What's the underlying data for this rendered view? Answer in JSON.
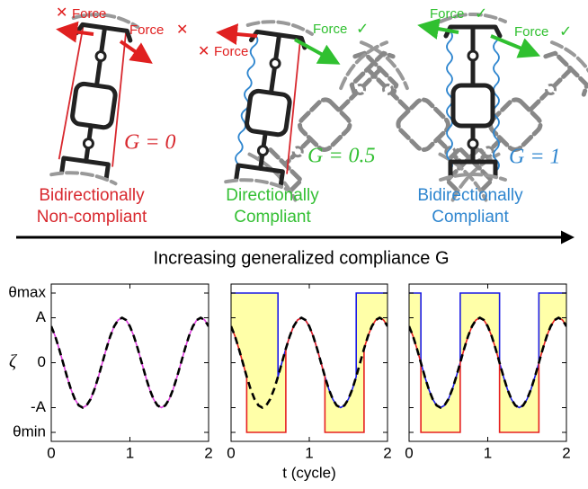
{
  "illustration": {
    "panels": [
      {
        "force_labels": [
          "Force",
          "Force"
        ],
        "g_label": "G = 0",
        "caption": [
          "Bidirectionally",
          "Non-compliant"
        ],
        "color": "#d8282e"
      },
      {
        "force_labels": [
          "Force",
          "Force"
        ],
        "g_label": "G = 0.5",
        "caption": [
          "Directionally",
          "Compliant"
        ],
        "color": "#35c035"
      },
      {
        "force_labels": [
          "Force",
          "Force"
        ],
        "g_label": "G = 1",
        "caption": [
          "Bidirectionally",
          "Compliant"
        ],
        "color": "#2f86cf"
      }
    ],
    "arrow_caption": "Increasing generalized compliance G"
  },
  "chart_data": [
    {
      "type": "line",
      "ylabel": "ζ",
      "x": [
        0,
        0.05,
        0.1,
        0.15,
        0.2,
        0.25,
        0.3,
        0.35,
        0.4,
        0.45,
        0.5,
        0.55,
        0.6,
        0.65,
        0.7,
        0.75,
        0.8,
        0.85,
        0.9,
        0.95,
        1,
        1.05,
        1.1,
        1.15,
        1.2,
        1.25,
        1.3,
        1.35,
        1.4,
        1.45,
        1.5,
        1.55,
        1.6,
        1.65,
        1.7,
        1.75,
        1.8,
        1.85,
        1.9,
        1.95,
        2
      ],
      "series": [
        {
          "color": "#e040e0",
          "style": "solid",
          "values": [
            0.81,
            0.59,
            0.31,
            0,
            -0.31,
            -0.59,
            -0.81,
            -0.95,
            -1,
            -0.95,
            -0.81,
            -0.59,
            -0.31,
            0,
            0.31,
            0.59,
            0.81,
            0.95,
            1,
            0.95,
            0.81,
            0.59,
            0.31,
            0,
            -0.31,
            -0.59,
            -0.81,
            -0.95,
            -1,
            -0.95,
            -0.81,
            -0.59,
            -0.31,
            0,
            0.31,
            0.59,
            0.81,
            0.95,
            1,
            0.95,
            0.81
          ]
        },
        {
          "color": "#000000",
          "style": "dashed",
          "values": [
            0.81,
            0.59,
            0.31,
            0,
            -0.31,
            -0.59,
            -0.81,
            -0.95,
            -1,
            -0.95,
            -0.81,
            -0.59,
            -0.31,
            0,
            0.31,
            0.59,
            0.81,
            0.95,
            1,
            0.95,
            0.81,
            0.59,
            0.31,
            0,
            -0.31,
            -0.59,
            -0.81,
            -0.95,
            -1,
            -0.95,
            -0.81,
            -0.59,
            -0.31,
            0,
            0.31,
            0.59,
            0.81,
            0.95,
            1,
            0.95,
            0.81
          ]
        }
      ],
      "xlim": [
        0,
        2
      ],
      "xticks": [
        0,
        1,
        2
      ],
      "ylim": [
        -1.75,
        1.75
      ],
      "show_ytick_labels": true,
      "yticks": [
        {
          "value": 1.55,
          "label": "θmax"
        },
        {
          "value": 1,
          "label": "A"
        },
        0,
        {
          "value": -1,
          "label": "-A"
        },
        {
          "value": -1.55,
          "label": "θmin"
        }
      ]
    },
    {
      "type": "line",
      "xlabel": "t (cycle)",
      "fill": "#ffffa8",
      "x": [
        0,
        0.05,
        0.1,
        0.15,
        0.2,
        0.25,
        0.3,
        0.35,
        0.4,
        0.45,
        0.5,
        0.55,
        0.6,
        0.65,
        0.7,
        0.75,
        0.8,
        0.85,
        0.9,
        0.95,
        1,
        1.05,
        1.1,
        1.15,
        1.2,
        1.25,
        1.3,
        1.35,
        1.4,
        1.45,
        1.5,
        1.55,
        1.6,
        1.65,
        1.7,
        1.75,
        1.8,
        1.85,
        1.9,
        1.95,
        2
      ],
      "series": [
        {
          "color": "#1a1ae6",
          "style": "solid",
          "x": [
            0,
            0.6,
            0.6,
            0.65,
            0.7,
            0.75,
            0.8,
            0.85,
            0.9,
            0.95,
            1,
            1.05,
            1.1,
            1.15,
            1.2,
            1.25,
            1.3,
            1.35,
            1.4,
            1.45,
            1.5,
            1.55,
            1.6,
            1.6,
            2
          ],
          "values": [
            1.55,
            1.55,
            -0.31,
            0,
            0.31,
            0.59,
            0.81,
            0.95,
            1,
            0.95,
            0.81,
            0.59,
            0.31,
            0,
            -0.31,
            -0.59,
            -0.81,
            -0.95,
            -1,
            -0.95,
            -0.81,
            -0.59,
            -0.31,
            1.55,
            1.55
          ]
        },
        {
          "color": "#e62020",
          "style": "solid",
          "x": [
            0,
            0.05,
            0.1,
            0.15,
            0.2,
            0.2,
            0.7,
            0.7,
            0.75,
            0.8,
            0.85,
            0.9,
            0.95,
            1,
            1.05,
            1.1,
            1.15,
            1.2,
            1.2,
            1.7,
            1.7,
            1.75,
            1.8,
            1.85,
            1.9,
            1.95,
            2
          ],
          "values": [
            0.81,
            0.59,
            0.31,
            0,
            -0.31,
            -1.55,
            -1.55,
            0.31,
            0.59,
            0.81,
            0.95,
            1,
            0.95,
            0.81,
            0.59,
            0.31,
            0,
            -0.31,
            -1.55,
            -1.55,
            0.31,
            0.59,
            0.81,
            0.95,
            1,
            0.95,
            0.81
          ]
        },
        {
          "color": "#000000",
          "style": "dashed",
          "values": [
            0.81,
            0.59,
            0.31,
            0,
            -0.31,
            -0.59,
            -0.81,
            -0.95,
            -1,
            -0.95,
            -0.81,
            -0.59,
            -0.31,
            0,
            0.31,
            0.59,
            0.81,
            0.95,
            1,
            0.95,
            0.81,
            0.59,
            0.31,
            0,
            -0.31,
            -0.59,
            -0.81,
            -0.95,
            -1,
            -0.95,
            -0.81,
            -0.59,
            -0.31,
            0,
            0.31,
            0.59,
            0.81,
            0.95,
            1,
            0.95,
            0.81
          ]
        }
      ],
      "xlim": [
        0,
        2
      ],
      "xticks": [
        0,
        1,
        2
      ],
      "ylim": [
        -1.75,
        1.75
      ],
      "show_ytick_labels": false,
      "yticks": [
        1.55,
        1,
        0,
        -1,
        -1.55
      ]
    },
    {
      "type": "line",
      "fill": "#ffffa8",
      "x": [
        0,
        0.05,
        0.1,
        0.15,
        0.2,
        0.25,
        0.3,
        0.35,
        0.4,
        0.45,
        0.5,
        0.55,
        0.6,
        0.65,
        0.7,
        0.75,
        0.8,
        0.85,
        0.9,
        0.95,
        1,
        1.05,
        1.1,
        1.15,
        1.2,
        1.25,
        1.3,
        1.35,
        1.4,
        1.45,
        1.5,
        1.55,
        1.6,
        1.65,
        1.7,
        1.75,
        1.8,
        1.85,
        1.9,
        1.95,
        2
      ],
      "series": [
        {
          "color": "#1a1ae6",
          "style": "solid",
          "x": [
            0,
            0.15,
            0.15,
            0.2,
            0.25,
            0.3,
            0.35,
            0.4,
            0.45,
            0.5,
            0.55,
            0.6,
            0.65,
            0.65,
            1.15,
            1.15,
            1.2,
            1.25,
            1.3,
            1.35,
            1.4,
            1.45,
            1.5,
            1.55,
            1.6,
            1.65,
            1.65,
            2
          ],
          "values": [
            1.55,
            1.55,
            0,
            -0.31,
            -0.59,
            -0.81,
            -0.95,
            -1,
            -0.95,
            -0.81,
            -0.59,
            -0.31,
            0,
            1.55,
            1.55,
            0,
            -0.31,
            -0.59,
            -0.81,
            -0.95,
            -1,
            -0.95,
            -0.81,
            -0.59,
            -0.31,
            0,
            1.55,
            1.55
          ]
        },
        {
          "color": "#e62020",
          "style": "solid",
          "x": [
            0,
            0.05,
            0.1,
            0.15,
            0.15,
            0.65,
            0.65,
            0.7,
            0.75,
            0.8,
            0.85,
            0.9,
            0.95,
            1,
            1.05,
            1.1,
            1.15,
            1.15,
            1.65,
            1.65,
            1.7,
            1.75,
            1.8,
            1.85,
            1.9,
            1.95,
            2
          ],
          "values": [
            0.81,
            0.59,
            0.31,
            0,
            -1.55,
            -1.55,
            0,
            0.31,
            0.59,
            0.81,
            0.95,
            1,
            0.95,
            0.81,
            0.59,
            0.31,
            0,
            -1.55,
            -1.55,
            0,
            0.31,
            0.59,
            0.81,
            0.95,
            1,
            0.95,
            0.81
          ]
        },
        {
          "color": "#000000",
          "style": "dashed",
          "values": [
            0.81,
            0.59,
            0.31,
            0,
            -0.31,
            -0.59,
            -0.81,
            -0.95,
            -1,
            -0.95,
            -0.81,
            -0.59,
            -0.31,
            0,
            0.31,
            0.59,
            0.81,
            0.95,
            1,
            0.95,
            0.81,
            0.59,
            0.31,
            0,
            -0.31,
            -0.59,
            -0.81,
            -0.95,
            -1,
            -0.95,
            -0.81,
            -0.59,
            -0.31,
            0,
            0.31,
            0.59,
            0.81,
            0.95,
            1,
            0.95,
            0.81
          ]
        }
      ],
      "xlim": [
        0,
        2
      ],
      "xticks": [
        0,
        1,
        2
      ],
      "ylim": [
        -1.75,
        1.75
      ],
      "show_ytick_labels": false,
      "yticks": [
        1.55,
        1,
        0,
        -1,
        -1.55
      ]
    }
  ]
}
